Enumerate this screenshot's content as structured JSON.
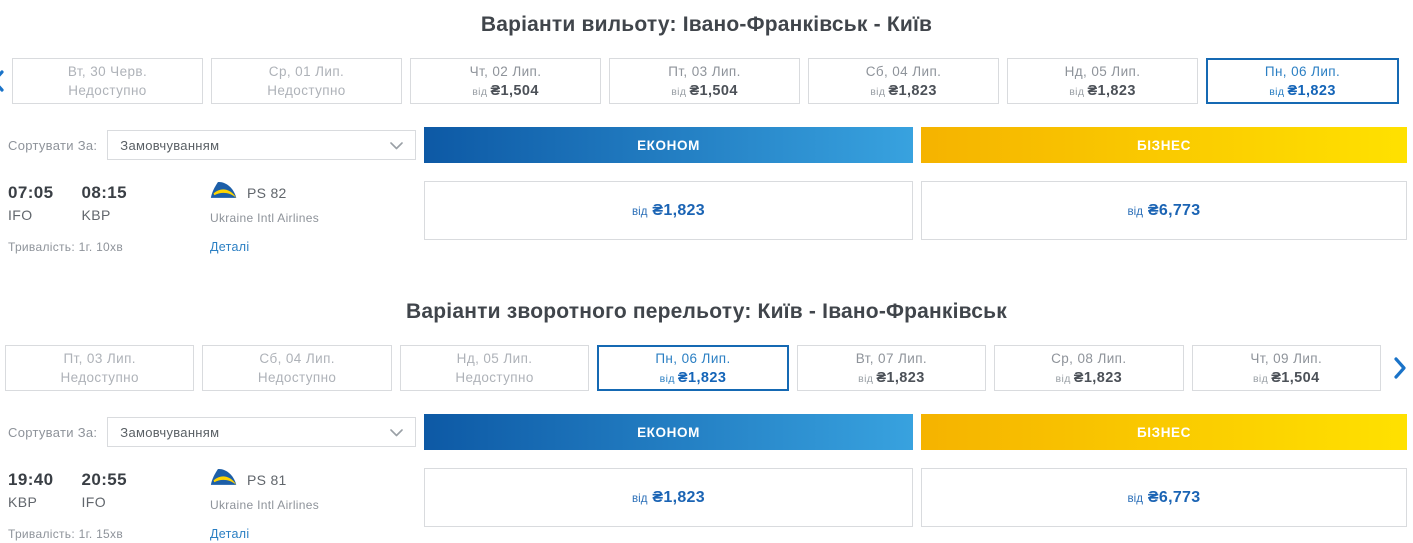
{
  "colors": {
    "accent_blue": "#1569b3",
    "link_blue": "#2b7fc3",
    "price_blue": "#1b64b4",
    "econom_gradient_start": "#0d59a5",
    "econom_gradient_end": "#38a2df",
    "business_gradient_start": "#f5b300",
    "business_gradient_end": "#ffe100",
    "unavailable_gray": "#aeb2b8"
  },
  "icons": {
    "chevron_left": "‹",
    "chevron_right": "›",
    "chevron_down": "⌄",
    "airline_logo": "uia-tail-fin"
  },
  "outbound": {
    "title": "Варіанти вильоту: Івано-Франківськ - Київ",
    "dates": [
      {
        "day": "Вт, 30 Черв.",
        "status": "Недоступно",
        "available": false,
        "selected": false
      },
      {
        "day": "Ср, 01 Лип.",
        "status": "Недоступно",
        "available": false,
        "selected": false
      },
      {
        "day": "Чт, 02 Лип.",
        "price_prefix": "від",
        "price": "₴1,504",
        "available": true,
        "selected": false
      },
      {
        "day": "Пт, 03 Лип.",
        "price_prefix": "від",
        "price": "₴1,504",
        "available": true,
        "selected": false
      },
      {
        "day": "Сб, 04 Лип.",
        "price_prefix": "від",
        "price": "₴1,823",
        "available": true,
        "selected": false
      },
      {
        "day": "Нд, 05 Лип.",
        "price_prefix": "від",
        "price": "₴1,823",
        "available": true,
        "selected": false
      },
      {
        "day": "Пн, 06 Лип.",
        "price_prefix": "від",
        "price": "₴1,823",
        "available": true,
        "selected": true
      }
    ],
    "sort_label": "Сортувати За:",
    "sort_value": "Замовчуванням",
    "columns": {
      "econom": "ЕКОНОМ",
      "business": "БІЗНЕС"
    },
    "flight": {
      "dep_time": "07:05",
      "dep_code": "IFO",
      "arr_time": "08:15",
      "arr_code": "KBP",
      "flight_no": "PS 82",
      "airline": "Ukraine Intl Airlines",
      "duration": "Тривалість: 1г. 10хв",
      "details": "Деталі",
      "price_prefix": "від",
      "econom_price": "₴1,823",
      "business_price": "₴6,773"
    }
  },
  "inbound": {
    "title": "Варіанти зворотного перельоту: Київ - Івано-Франківськ",
    "dates": [
      {
        "day": "Пт, 03 Лип.",
        "status": "Недоступно",
        "available": false,
        "selected": false
      },
      {
        "day": "Сб, 04 Лип.",
        "status": "Недоступно",
        "available": false,
        "selected": false
      },
      {
        "day": "Нд, 05 Лип.",
        "status": "Недоступно",
        "available": false,
        "selected": false
      },
      {
        "day": "Пн, 06 Лип.",
        "price_prefix": "від",
        "price": "₴1,823",
        "available": true,
        "selected": true
      },
      {
        "day": "Вт, 07 Лип.",
        "price_prefix": "від",
        "price": "₴1,823",
        "available": true,
        "selected": false
      },
      {
        "day": "Ср, 08 Лип.",
        "price_prefix": "від",
        "price": "₴1,823",
        "available": true,
        "selected": false
      },
      {
        "day": "Чт, 09 Лип.",
        "price_prefix": "від",
        "price": "₴1,504",
        "available": true,
        "selected": false
      }
    ],
    "sort_label": "Сортувати За:",
    "sort_value": "Замовчуванням",
    "columns": {
      "econom": "ЕКОНОМ",
      "business": "БІЗНЕС"
    },
    "flight": {
      "dep_time": "19:40",
      "dep_code": "KBP",
      "arr_time": "20:55",
      "arr_code": "IFO",
      "flight_no": "PS 81",
      "airline": "Ukraine Intl Airlines",
      "duration": "Тривалість: 1г. 15хв",
      "details": "Деталі",
      "price_prefix": "від",
      "econom_price": "₴1,823",
      "business_price": "₴6,773"
    }
  }
}
